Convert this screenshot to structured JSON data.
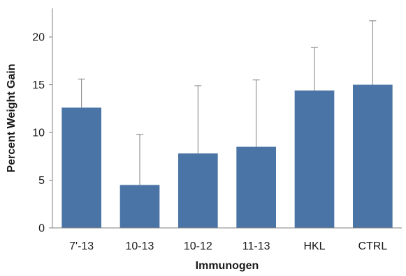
{
  "chart_data": {
    "type": "bar",
    "title": "",
    "xlabel": "Immunogen",
    "ylabel": "Percent Weight Gain",
    "categories": [
      "7'-13",
      "10-13",
      "10-12",
      "11-13",
      "HKL",
      "CTRL"
    ],
    "values": [
      12.6,
      4.5,
      7.8,
      8.5,
      14.4,
      15.0
    ],
    "error_upper": [
      15.6,
      9.8,
      14.9,
      15.5,
      18.9,
      21.7
    ],
    "ylim": [
      0,
      23
    ],
    "yticks": [
      0,
      5,
      10,
      15,
      20
    ],
    "grid": false,
    "legend": "none",
    "bar_color": "#4a74a5",
    "error_bar_color": "#808080"
  }
}
